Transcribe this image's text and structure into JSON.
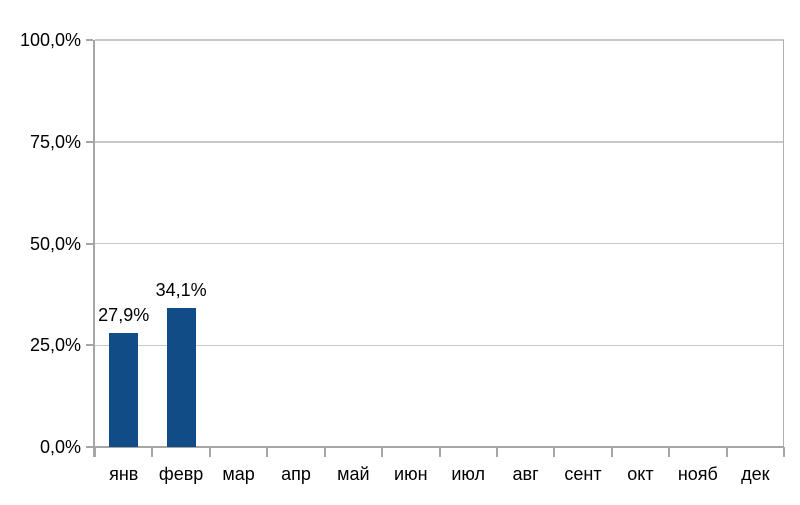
{
  "chart_data": {
    "type": "bar",
    "title": "",
    "xlabel": "",
    "ylabel": "",
    "categories": [
      "янв",
      "февр",
      "мар",
      "апр",
      "май",
      "июн",
      "июл",
      "авг",
      "сент",
      "окт",
      "нояб",
      "дек"
    ],
    "values": [
      27.9,
      34.1,
      null,
      null,
      null,
      null,
      null,
      null,
      null,
      null,
      null,
      null
    ],
    "data_labels": [
      "27,9%",
      "34,1%",
      "",
      "",
      "",
      "",
      "",
      "",
      "",
      "",
      "",
      ""
    ],
    "y_axis": {
      "tick_labels": [
        "100,0%",
        "75,0%",
        "50,0%",
        "25,0%",
        "0,0%"
      ],
      "tick_values": [
        100,
        75,
        50,
        25,
        0
      ],
      "range": [
        0,
        100
      ],
      "number_format": "percent-decimal-comma"
    },
    "grid": true,
    "legend": "none",
    "colors": {
      "bar": "#114C86",
      "gridline": "#C8C8C8",
      "axis": "#A6A6A6",
      "plot_border": "#B0B0B0",
      "text": "#000000",
      "background": "#FFFFFF"
    }
  }
}
